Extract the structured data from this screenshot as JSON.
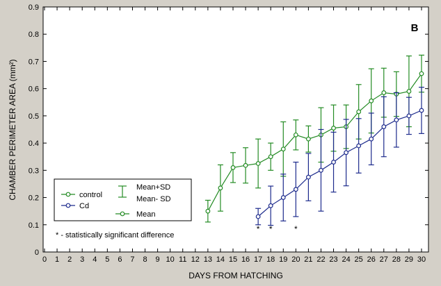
{
  "chart_data": {
    "type": "line",
    "panel_label": "B",
    "xlabel": "DAYS FROM HATCHING",
    "ylabel": "CHAMBER PERIMETER AREA (mm²)",
    "xlim": [
      0,
      30
    ],
    "ylim": [
      0,
      0.9
    ],
    "x_ticks": [
      "0",
      "1",
      "2",
      "3",
      "4",
      "5",
      "6",
      "7",
      "8",
      "9",
      "10",
      "11",
      "12",
      "13",
      "14",
      "15",
      "16",
      "17",
      "18",
      "19",
      "20",
      "21",
      "22",
      "23",
      "24",
      "25",
      "26",
      "27",
      "28",
      "29",
      "30"
    ],
    "y_ticks": [
      "0",
      "0.1",
      "0.2",
      "0.3",
      "0.4",
      "0.5",
      "0.6",
      "0.7",
      "0.8",
      "0.9"
    ],
    "colors": {
      "control": "#238b23",
      "Cd": "#1c2a8c",
      "plot_bg": "#ffffff",
      "page_bg": "#d4d0c8"
    },
    "series": [
      {
        "name": "control",
        "x": [
          13,
          14,
          15,
          16,
          17,
          18,
          19,
          20,
          21,
          22,
          23,
          24,
          25,
          26,
          27,
          28,
          29,
          30
        ],
        "mean": [
          0.15,
          0.235,
          0.31,
          0.318,
          0.325,
          0.35,
          0.378,
          0.43,
          0.415,
          0.43,
          0.455,
          0.46,
          0.515,
          0.555,
          0.585,
          0.58,
          0.59,
          0.655
        ],
        "sd": [
          0.04,
          0.085,
          0.055,
          0.065,
          0.09,
          0.05,
          0.1,
          0.055,
          0.048,
          0.1,
          0.085,
          0.08,
          0.1,
          0.118,
          0.09,
          0.082,
          0.13,
          0.068
        ]
      },
      {
        "name": "Cd",
        "x": [
          17,
          18,
          19,
          20,
          21,
          22,
          23,
          24,
          25,
          26,
          27,
          28,
          29,
          30
        ],
        "mean": [
          0.13,
          0.17,
          0.2,
          0.23,
          0.275,
          0.3,
          0.33,
          0.365,
          0.39,
          0.415,
          0.46,
          0.485,
          0.5,
          0.52
        ],
        "sd": [
          0.03,
          0.072,
          0.086,
          0.1,
          0.087,
          0.15,
          0.11,
          0.122,
          0.1,
          0.095,
          0.11,
          0.1,
          0.068,
          0.085
        ]
      }
    ],
    "significance_days": [
      17,
      18,
      20
    ],
    "significance_mark": "*",
    "legend": {
      "position": "lower-left",
      "items": [
        {
          "label": "control",
          "color": "#238b23",
          "symbol": "line-circle"
        },
        {
          "label": "Cd",
          "color": "#1c2a8c",
          "symbol": "line-circle"
        }
      ],
      "errorbar_labels": [
        "Mean+SD",
        "Mean- SD"
      ],
      "mean_label": "Mean",
      "note": "* - statistically significant difference"
    }
  }
}
